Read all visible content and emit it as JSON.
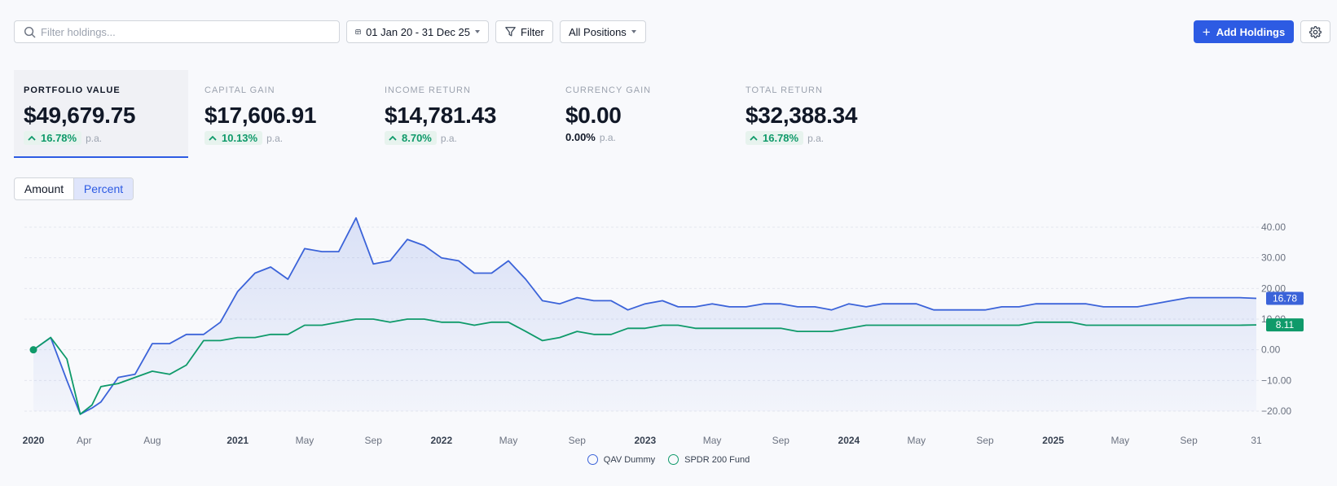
{
  "toolbar": {
    "search_placeholder": "Filter holdings...",
    "date_range": "01 Jan 20 - 31 Dec 25",
    "filter_label": "Filter",
    "positions_label": "All Positions",
    "add_label": "Add Holdings",
    "icons": [
      "search-icon",
      "calendar-icon",
      "filter-icon",
      "chevron-down-icon",
      "plus-icon",
      "gear-icon"
    ],
    "accent_color": "#2d5be3"
  },
  "metrics": [
    {
      "label": "PORTFOLIO VALUE",
      "value": "$49,679.75",
      "change": "16.78%",
      "direction": "up",
      "suffix": "p.a.",
      "active": true
    },
    {
      "label": "CAPITAL GAIN",
      "value": "$17,606.91",
      "change": "10.13%",
      "direction": "up",
      "suffix": "p.a.",
      "active": false
    },
    {
      "label": "INCOME RETURN",
      "value": "$14,781.43",
      "change": "8.70%",
      "direction": "up",
      "suffix": "p.a.",
      "active": false
    },
    {
      "label": "CURRENCY GAIN",
      "value": "$0.00",
      "change": "0.00%",
      "direction": "none",
      "suffix": "p.a.",
      "active": false
    },
    {
      "label": "TOTAL RETURN",
      "value": "$32,388.34",
      "change": "16.78%",
      "direction": "up",
      "suffix": "p.a.",
      "active": false
    }
  ],
  "view_toggle": {
    "options": [
      "Amount",
      "Percent"
    ],
    "selected": "Percent"
  },
  "chart_data": {
    "type": "line",
    "ylim": [
      -20,
      40
    ],
    "yticks": [
      "40.00",
      "30.00",
      "20.00",
      "10.00",
      "0.00",
      "−10.00",
      "−20.00"
    ],
    "ytick_values": [
      40,
      30,
      20,
      10,
      0,
      -10,
      -20
    ],
    "x_range": [
      "2020-01-01",
      "2025-12-31"
    ],
    "xticks": [
      {
        "label": "2020",
        "date": "2020-01-01",
        "major": true
      },
      {
        "label": "Apr",
        "date": "2020-04-01",
        "major": false
      },
      {
        "label": "Aug",
        "date": "2020-08-01",
        "major": false
      },
      {
        "label": "2021",
        "date": "2021-01-01",
        "major": true
      },
      {
        "label": "May",
        "date": "2021-05-01",
        "major": false
      },
      {
        "label": "Sep",
        "date": "2021-09-01",
        "major": false
      },
      {
        "label": "2022",
        "date": "2022-01-01",
        "major": true
      },
      {
        "label": "May",
        "date": "2022-05-01",
        "major": false
      },
      {
        "label": "Sep",
        "date": "2022-09-01",
        "major": false
      },
      {
        "label": "2023",
        "date": "2023-01-01",
        "major": true
      },
      {
        "label": "May",
        "date": "2023-05-01",
        "major": false
      },
      {
        "label": "Sep",
        "date": "2023-09-01",
        "major": false
      },
      {
        "label": "2024",
        "date": "2024-01-01",
        "major": true
      },
      {
        "label": "May",
        "date": "2024-05-01",
        "major": false
      },
      {
        "label": "Sep",
        "date": "2024-09-01",
        "major": false
      },
      {
        "label": "2025",
        "date": "2025-01-01",
        "major": true
      },
      {
        "label": "May",
        "date": "2025-05-01",
        "major": false
      },
      {
        "label": "Sep",
        "date": "2025-09-01",
        "major": false
      },
      {
        "label": "31",
        "date": "2025-12-31",
        "major": false
      }
    ],
    "grid": true,
    "legend_position": "bottom-center",
    "series": [
      {
        "name": "QAV Dummy",
        "color": "#3b63d9",
        "end_label": "16.78",
        "filled": true,
        "points": [
          [
            "2020-01-01",
            0
          ],
          [
            "2020-02-01",
            4
          ],
          [
            "2020-03-01",
            -10
          ],
          [
            "2020-03-25",
            -21
          ],
          [
            "2020-04-15",
            -19
          ],
          [
            "2020-05-01",
            -17
          ],
          [
            "2020-06-01",
            -9
          ],
          [
            "2020-07-01",
            -8
          ],
          [
            "2020-08-01",
            2
          ],
          [
            "2020-09-01",
            2
          ],
          [
            "2020-10-01",
            5
          ],
          [
            "2020-11-01",
            5
          ],
          [
            "2020-12-01",
            9
          ],
          [
            "2021-01-01",
            19
          ],
          [
            "2021-02-01",
            25
          ],
          [
            "2021-03-01",
            27
          ],
          [
            "2021-04-01",
            23
          ],
          [
            "2021-05-01",
            33
          ],
          [
            "2021-06-01",
            32
          ],
          [
            "2021-07-01",
            32
          ],
          [
            "2021-08-01",
            43
          ],
          [
            "2021-09-01",
            28
          ],
          [
            "2021-10-01",
            29
          ],
          [
            "2021-11-01",
            36
          ],
          [
            "2021-12-01",
            34
          ],
          [
            "2022-01-01",
            30
          ],
          [
            "2022-02-01",
            29
          ],
          [
            "2022-03-01",
            25
          ],
          [
            "2022-04-01",
            25
          ],
          [
            "2022-05-01",
            29
          ],
          [
            "2022-06-01",
            23
          ],
          [
            "2022-07-01",
            16
          ],
          [
            "2022-08-01",
            15
          ],
          [
            "2022-09-01",
            17
          ],
          [
            "2022-10-01",
            16
          ],
          [
            "2022-11-01",
            16
          ],
          [
            "2022-12-01",
            13
          ],
          [
            "2023-01-01",
            15
          ],
          [
            "2023-02-01",
            16
          ],
          [
            "2023-03-01",
            14
          ],
          [
            "2023-04-01",
            14
          ],
          [
            "2023-05-01",
            15
          ],
          [
            "2023-06-01",
            14
          ],
          [
            "2023-07-01",
            14
          ],
          [
            "2023-08-01",
            15
          ],
          [
            "2023-09-01",
            15
          ],
          [
            "2023-10-01",
            14
          ],
          [
            "2023-11-01",
            14
          ],
          [
            "2023-12-01",
            13
          ],
          [
            "2024-01-01",
            15
          ],
          [
            "2024-02-01",
            14
          ],
          [
            "2024-03-01",
            15
          ],
          [
            "2024-04-01",
            15
          ],
          [
            "2024-05-01",
            15
          ],
          [
            "2024-06-01",
            13
          ],
          [
            "2024-07-01",
            13
          ],
          [
            "2024-08-01",
            13
          ],
          [
            "2024-09-01",
            13
          ],
          [
            "2024-10-01",
            14
          ],
          [
            "2024-11-01",
            14
          ],
          [
            "2024-12-01",
            15
          ],
          [
            "2025-01-01",
            15
          ],
          [
            "2025-02-01",
            15
          ],
          [
            "2025-03-01",
            15
          ],
          [
            "2025-04-01",
            14
          ],
          [
            "2025-05-01",
            14
          ],
          [
            "2025-06-01",
            14
          ],
          [
            "2025-07-01",
            15
          ],
          [
            "2025-08-01",
            16
          ],
          [
            "2025-09-01",
            17
          ],
          [
            "2025-10-01",
            17
          ],
          [
            "2025-11-01",
            17
          ],
          [
            "2025-12-01",
            17
          ],
          [
            "2025-12-31",
            16.78
          ]
        ]
      },
      {
        "name": "SPDR 200 Fund",
        "color": "#0f9a6a",
        "end_label": "8.11",
        "filled": false,
        "points": [
          [
            "2020-01-01",
            0
          ],
          [
            "2020-02-01",
            4
          ],
          [
            "2020-03-01",
            -3
          ],
          [
            "2020-03-25",
            -21
          ],
          [
            "2020-04-15",
            -18
          ],
          [
            "2020-05-01",
            -12
          ],
          [
            "2020-06-01",
            -11
          ],
          [
            "2020-07-01",
            -9
          ],
          [
            "2020-08-01",
            -7
          ],
          [
            "2020-09-01",
            -8
          ],
          [
            "2020-10-01",
            -5
          ],
          [
            "2020-11-01",
            3
          ],
          [
            "2020-12-01",
            3
          ],
          [
            "2021-01-01",
            4
          ],
          [
            "2021-02-01",
            4
          ],
          [
            "2021-03-01",
            5
          ],
          [
            "2021-04-01",
            5
          ],
          [
            "2021-05-01",
            8
          ],
          [
            "2021-06-01",
            8
          ],
          [
            "2021-07-01",
            9
          ],
          [
            "2021-08-01",
            10
          ],
          [
            "2021-09-01",
            10
          ],
          [
            "2021-10-01",
            9
          ],
          [
            "2021-11-01",
            10
          ],
          [
            "2021-12-01",
            10
          ],
          [
            "2022-01-01",
            9
          ],
          [
            "2022-02-01",
            9
          ],
          [
            "2022-03-01",
            8
          ],
          [
            "2022-04-01",
            9
          ],
          [
            "2022-05-01",
            9
          ],
          [
            "2022-06-01",
            6
          ],
          [
            "2022-07-01",
            3
          ],
          [
            "2022-08-01",
            4
          ],
          [
            "2022-09-01",
            6
          ],
          [
            "2022-10-01",
            5
          ],
          [
            "2022-11-01",
            5
          ],
          [
            "2022-12-01",
            7
          ],
          [
            "2023-01-01",
            7
          ],
          [
            "2023-02-01",
            8
          ],
          [
            "2023-03-01",
            8
          ],
          [
            "2023-04-01",
            7
          ],
          [
            "2023-05-01",
            7
          ],
          [
            "2023-06-01",
            7
          ],
          [
            "2023-07-01",
            7
          ],
          [
            "2023-08-01",
            7
          ],
          [
            "2023-09-01",
            7
          ],
          [
            "2023-10-01",
            6
          ],
          [
            "2023-11-01",
            6
          ],
          [
            "2023-12-01",
            6
          ],
          [
            "2024-01-01",
            7
          ],
          [
            "2024-02-01",
            8
          ],
          [
            "2024-03-01",
            8
          ],
          [
            "2024-04-01",
            8
          ],
          [
            "2024-05-01",
            8
          ],
          [
            "2024-06-01",
            8
          ],
          [
            "2024-07-01",
            8
          ],
          [
            "2024-08-01",
            8
          ],
          [
            "2024-09-01",
            8
          ],
          [
            "2024-10-01",
            8
          ],
          [
            "2024-11-01",
            8
          ],
          [
            "2024-12-01",
            9
          ],
          [
            "2025-01-01",
            9
          ],
          [
            "2025-02-01",
            9
          ],
          [
            "2025-03-01",
            8
          ],
          [
            "2025-04-01",
            8
          ],
          [
            "2025-05-01",
            8
          ],
          [
            "2025-06-01",
            8
          ],
          [
            "2025-07-01",
            8
          ],
          [
            "2025-08-01",
            8
          ],
          [
            "2025-09-01",
            8
          ],
          [
            "2025-10-01",
            8
          ],
          [
            "2025-11-01",
            8
          ],
          [
            "2025-12-01",
            8
          ],
          [
            "2025-12-31",
            8.11
          ]
        ]
      }
    ]
  },
  "legend": [
    {
      "name": "QAV Dummy",
      "color": "#3b63d9"
    },
    {
      "name": "SPDR 200 Fund",
      "color": "#0f9a6a"
    }
  ]
}
